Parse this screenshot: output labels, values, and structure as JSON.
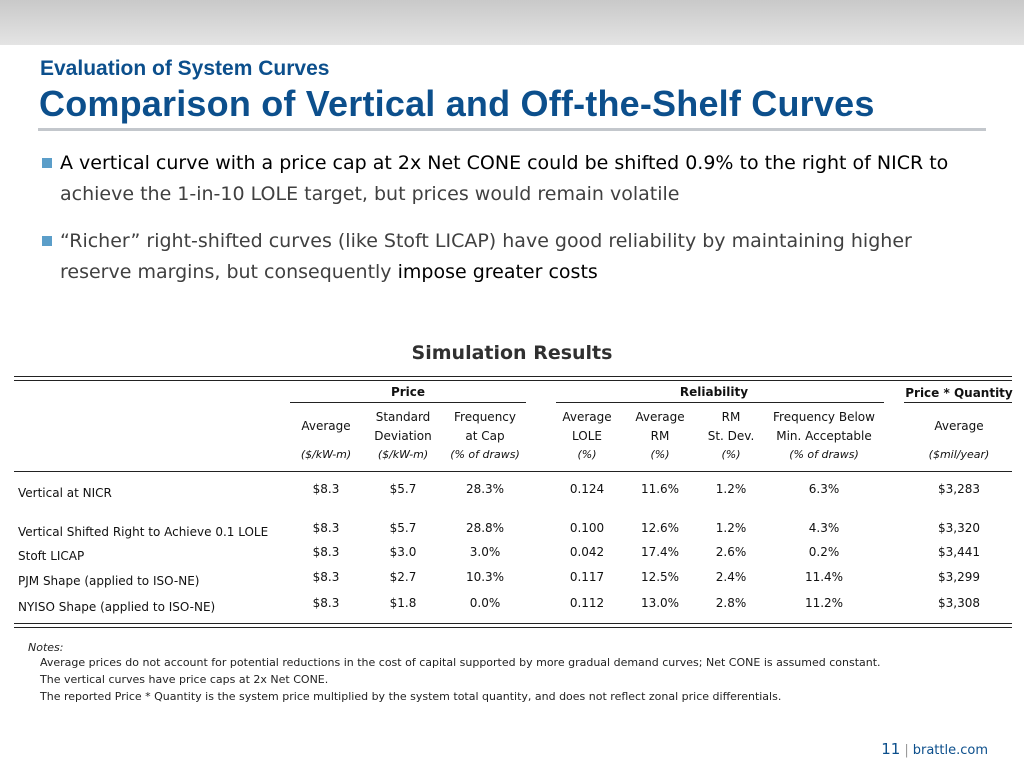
{
  "header": {
    "subtitle": "Evaluation of System Curves",
    "title": "Comparison of Vertical and Off-the-Shelf Curves"
  },
  "bullets": [
    {
      "part1": "A vertical curve with a price cap at 2x Net CONE could be shifted 0.9% to the right of NICR to",
      "part2": "achieve the 1-in-10 LOLE target, but prices would remain volatile"
    },
    {
      "part1": "“Richer” right-shifted curves (like Stoft LICAP) have good reliability by maintaining higher reserve margins, but consequently",
      "part2": "impose greater costs"
    }
  ],
  "table": {
    "title": "Simulation Results",
    "groups": {
      "price": "Price",
      "reliability": "Reliability",
      "pq": "Price * Quantity"
    },
    "columns": [
      {
        "h1": "Average",
        "h2": "",
        "unit": "($/kW-m)"
      },
      {
        "h1": "Standard",
        "h2": "Deviation",
        "unit": "($/kW-m)"
      },
      {
        "h1": "Frequency",
        "h2": "at Cap",
        "unit": "(% of draws)"
      },
      {
        "h1": "Average",
        "h2": "LOLE",
        "unit": "(%)"
      },
      {
        "h1": "Average",
        "h2": "RM",
        "unit": "(%)"
      },
      {
        "h1": "RM",
        "h2": "St. Dev.",
        "unit": "(%)"
      },
      {
        "h1": "Frequency Below",
        "h2": "Min. Acceptable",
        "unit": "(% of draws)"
      },
      {
        "h1": "Average",
        "h2": "",
        "unit": "($mil/year)"
      }
    ],
    "rows": [
      {
        "label": "Vertical at NICR",
        "values": [
          "$8.3",
          "$5.7",
          "28.3%",
          "0.124",
          "11.6%",
          "1.2%",
          "6.3%",
          "$3,283"
        ]
      },
      {
        "label": "Vertical Shifted Right to Achieve 0.1 LOLE",
        "values": [
          "$8.3",
          "$5.7",
          "28.8%",
          "0.100",
          "12.6%",
          "1.2%",
          "4.3%",
          "$3,320"
        ]
      },
      {
        "label": "Stoft LICAP",
        "values": [
          "$8.3",
          "$3.0",
          "3.0%",
          "0.042",
          "17.4%",
          "2.6%",
          "0.2%",
          "$3,441"
        ]
      },
      {
        "label": "PJM Shape (applied to ISO-NE)",
        "values": [
          "$8.3",
          "$2.7",
          "10.3%",
          "0.117",
          "12.5%",
          "2.4%",
          "11.4%",
          "$3,299"
        ]
      },
      {
        "label": "NYISO Shape (applied to ISO-NE)",
        "values": [
          "$8.3",
          "$1.8",
          "0.0%",
          "0.112",
          "13.0%",
          "2.8%",
          "11.2%",
          "$3,308"
        ]
      }
    ]
  },
  "notes": {
    "heading": "Notes:",
    "lines": [
      "Average prices do not account for potential reductions in the cost of capital supported by more gradual demand curves; Net CONE is assumed constant.",
      "The vertical curves have price caps at 2x Net CONE.",
      "The reported Price * Quantity is the system price multiplied by the system total quantity, and does not reflect zonal price differentials."
    ]
  },
  "footer": {
    "page": "11",
    "separator": "|",
    "site": "brattle.com"
  }
}
